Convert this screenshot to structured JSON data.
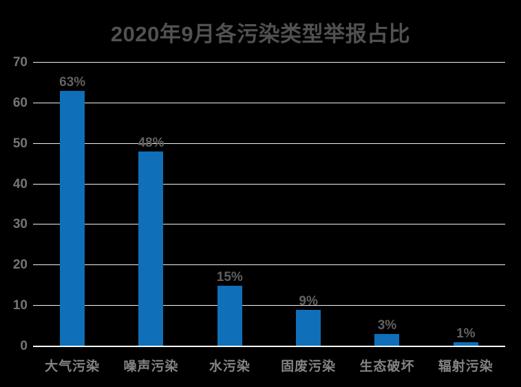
{
  "title": "2020年9月各污染类型举报占比",
  "colors": {
    "background": "#000000",
    "bar": "#0F6FB8",
    "title_text": "#515151",
    "tick_text": "#757575",
    "data_label_text": "#616161",
    "category_text": "#848484",
    "gridline": "#F2F2F2",
    "axis_line": "#FFFFFF"
  },
  "chart_data": {
    "type": "bar",
    "title": "2020年9月各污染类型举报占比",
    "categories": [
      "大气污染",
      "噪声污染",
      "水污染",
      "固废污染",
      "生态破坏",
      "辐射污染"
    ],
    "values": [
      63,
      48,
      15,
      9,
      3,
      1
    ],
    "data_labels": [
      "63%",
      "48%",
      "15%",
      "9%",
      "3%",
      "1%"
    ],
    "xlabel": "",
    "ylabel": "",
    "ylim": [
      0,
      70
    ],
    "yticks": [
      0,
      10,
      20,
      30,
      40,
      50,
      60,
      70
    ],
    "grid": "horizontal",
    "legend": "none",
    "bar_color": "#0F6FB8"
  }
}
